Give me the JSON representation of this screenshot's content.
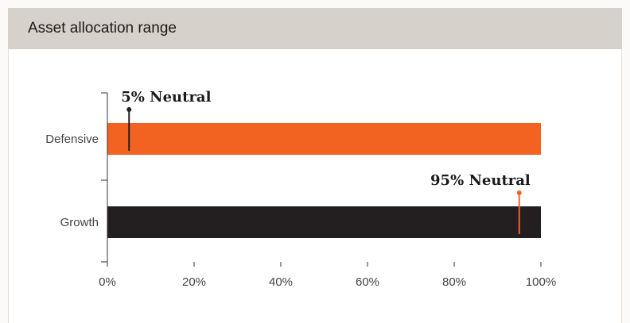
{
  "header": {
    "title": "Asset allocation range"
  },
  "colors": {
    "defensive": "#f26322",
    "growth": "#231f20",
    "defensive_marker": "#231f20",
    "growth_marker": "#f26322",
    "axis": "#333333",
    "header_bg": "#d6d2cb"
  },
  "chart_data": {
    "type": "bar",
    "orientation": "horizontal",
    "title": "",
    "xlabel": "",
    "ylabel": "",
    "categories": [
      "Defensive",
      "Growth"
    ],
    "values": [
      100,
      100
    ],
    "xlim": [
      0,
      100
    ],
    "x_ticks": [
      "0%",
      "20%",
      "40%",
      "60%",
      "80%",
      "100%"
    ],
    "grid": false,
    "annotations": [
      {
        "category": "Defensive",
        "value": 5,
        "label": "5% Neutral"
      },
      {
        "category": "Growth",
        "value": 95,
        "label": "95% Neutral"
      }
    ]
  }
}
